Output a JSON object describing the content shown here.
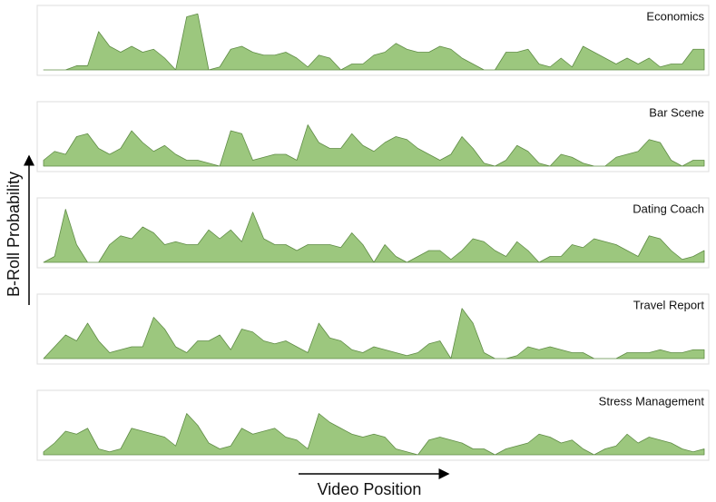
{
  "ylabel": "B-Roll Probability",
  "xlabel": "Video Position",
  "chart_data": [
    {
      "type": "area",
      "title": "Economics",
      "color": "#9cc77e",
      "ylim": [
        0,
        1
      ],
      "values": [
        0,
        0,
        0,
        0.07,
        0.07,
        0.65,
        0.4,
        0.3,
        0.4,
        0.3,
        0.35,
        0.2,
        0,
        0.9,
        0.95,
        0,
        0.05,
        0.35,
        0.4,
        0.3,
        0.25,
        0.25,
        0.3,
        0.2,
        0.05,
        0.25,
        0.2,
        0,
        0.1,
        0.1,
        0.25,
        0.3,
        0.45,
        0.35,
        0.3,
        0.3,
        0.4,
        0.35,
        0.2,
        0.1,
        0,
        0,
        0.3,
        0.3,
        0.35,
        0.1,
        0.05,
        0.2,
        0.05,
        0.4,
        0.3,
        0.2,
        0.1,
        0.2,
        0.1,
        0.2,
        0.05,
        0.1,
        0.1,
        0.35,
        0.35
      ]
    },
    {
      "type": "area",
      "title": "Bar Scene",
      "color": "#9cc77e",
      "ylim": [
        0,
        1
      ],
      "values": [
        0.1,
        0.25,
        0.2,
        0.5,
        0.55,
        0.3,
        0.2,
        0.3,
        0.6,
        0.4,
        0.25,
        0.35,
        0.2,
        0.1,
        0.1,
        0.05,
        0,
        0.6,
        0.55,
        0.1,
        0.15,
        0.2,
        0.2,
        0.1,
        0.7,
        0.4,
        0.3,
        0.3,
        0.55,
        0.35,
        0.25,
        0.4,
        0.5,
        0.45,
        0.3,
        0.2,
        0.1,
        0.2,
        0.5,
        0.3,
        0.05,
        0,
        0.1,
        0.35,
        0.25,
        0.05,
        0,
        0.2,
        0.15,
        0.05,
        0,
        0,
        0.15,
        0.2,
        0.25,
        0.45,
        0.4,
        0.1,
        0,
        0.1,
        0.1
      ]
    },
    {
      "type": "area",
      "title": "Dating Coach",
      "color": "#9cc77e",
      "ylim": [
        0,
        1
      ],
      "values": [
        0,
        0.1,
        0.9,
        0.3,
        0,
        0,
        0.3,
        0.45,
        0.4,
        0.6,
        0.5,
        0.3,
        0.35,
        0.3,
        0.3,
        0.55,
        0.4,
        0.55,
        0.35,
        0.85,
        0.4,
        0.3,
        0.3,
        0.2,
        0.3,
        0.3,
        0.3,
        0.25,
        0.5,
        0.3,
        0,
        0.3,
        0.1,
        0,
        0.1,
        0.2,
        0.2,
        0.05,
        0.2,
        0.4,
        0.35,
        0.2,
        0.1,
        0.35,
        0.2,
        0,
        0.1,
        0.1,
        0.3,
        0.25,
        0.4,
        0.35,
        0.3,
        0.2,
        0.1,
        0.45,
        0.4,
        0.2,
        0.05,
        0.1,
        0.2
      ]
    },
    {
      "type": "area",
      "title": "Travel Report",
      "color": "#9cc77e",
      "ylim": [
        0,
        1
      ],
      "values": [
        0,
        0.2,
        0.4,
        0.3,
        0.6,
        0.3,
        0.1,
        0.15,
        0.2,
        0.2,
        0.7,
        0.5,
        0.2,
        0.1,
        0.3,
        0.3,
        0.4,
        0.15,
        0.5,
        0.45,
        0.3,
        0.25,
        0.3,
        0.2,
        0.1,
        0.6,
        0.35,
        0.3,
        0.15,
        0.1,
        0.2,
        0.15,
        0.1,
        0.05,
        0.1,
        0.25,
        0.3,
        0,
        0.85,
        0.6,
        0.1,
        0,
        0,
        0.05,
        0.2,
        0.15,
        0.2,
        0.15,
        0.1,
        0.1,
        0,
        0,
        0,
        0.1,
        0.1,
        0.1,
        0.15,
        0.1,
        0.1,
        0.15,
        0.15
      ]
    },
    {
      "type": "area",
      "title": "Stress Management",
      "color": "#9cc77e",
      "ylim": [
        0,
        1
      ],
      "values": [
        0.05,
        0.2,
        0.4,
        0.35,
        0.45,
        0.1,
        0.05,
        0.1,
        0.45,
        0.4,
        0.35,
        0.3,
        0.15,
        0.7,
        0.5,
        0.2,
        0.1,
        0.15,
        0.45,
        0.35,
        0.4,
        0.45,
        0.3,
        0.25,
        0.1,
        0.7,
        0.55,
        0.45,
        0.35,
        0.3,
        0.35,
        0.3,
        0.1,
        0.05,
        0,
        0.25,
        0.3,
        0.25,
        0.2,
        0.1,
        0.1,
        0,
        0.1,
        0.15,
        0.2,
        0.35,
        0.3,
        0.2,
        0.25,
        0.1,
        0,
        0.1,
        0.15,
        0.35,
        0.2,
        0.3,
        0.25,
        0.2,
        0.1,
        0.05,
        0.1
      ]
    }
  ]
}
